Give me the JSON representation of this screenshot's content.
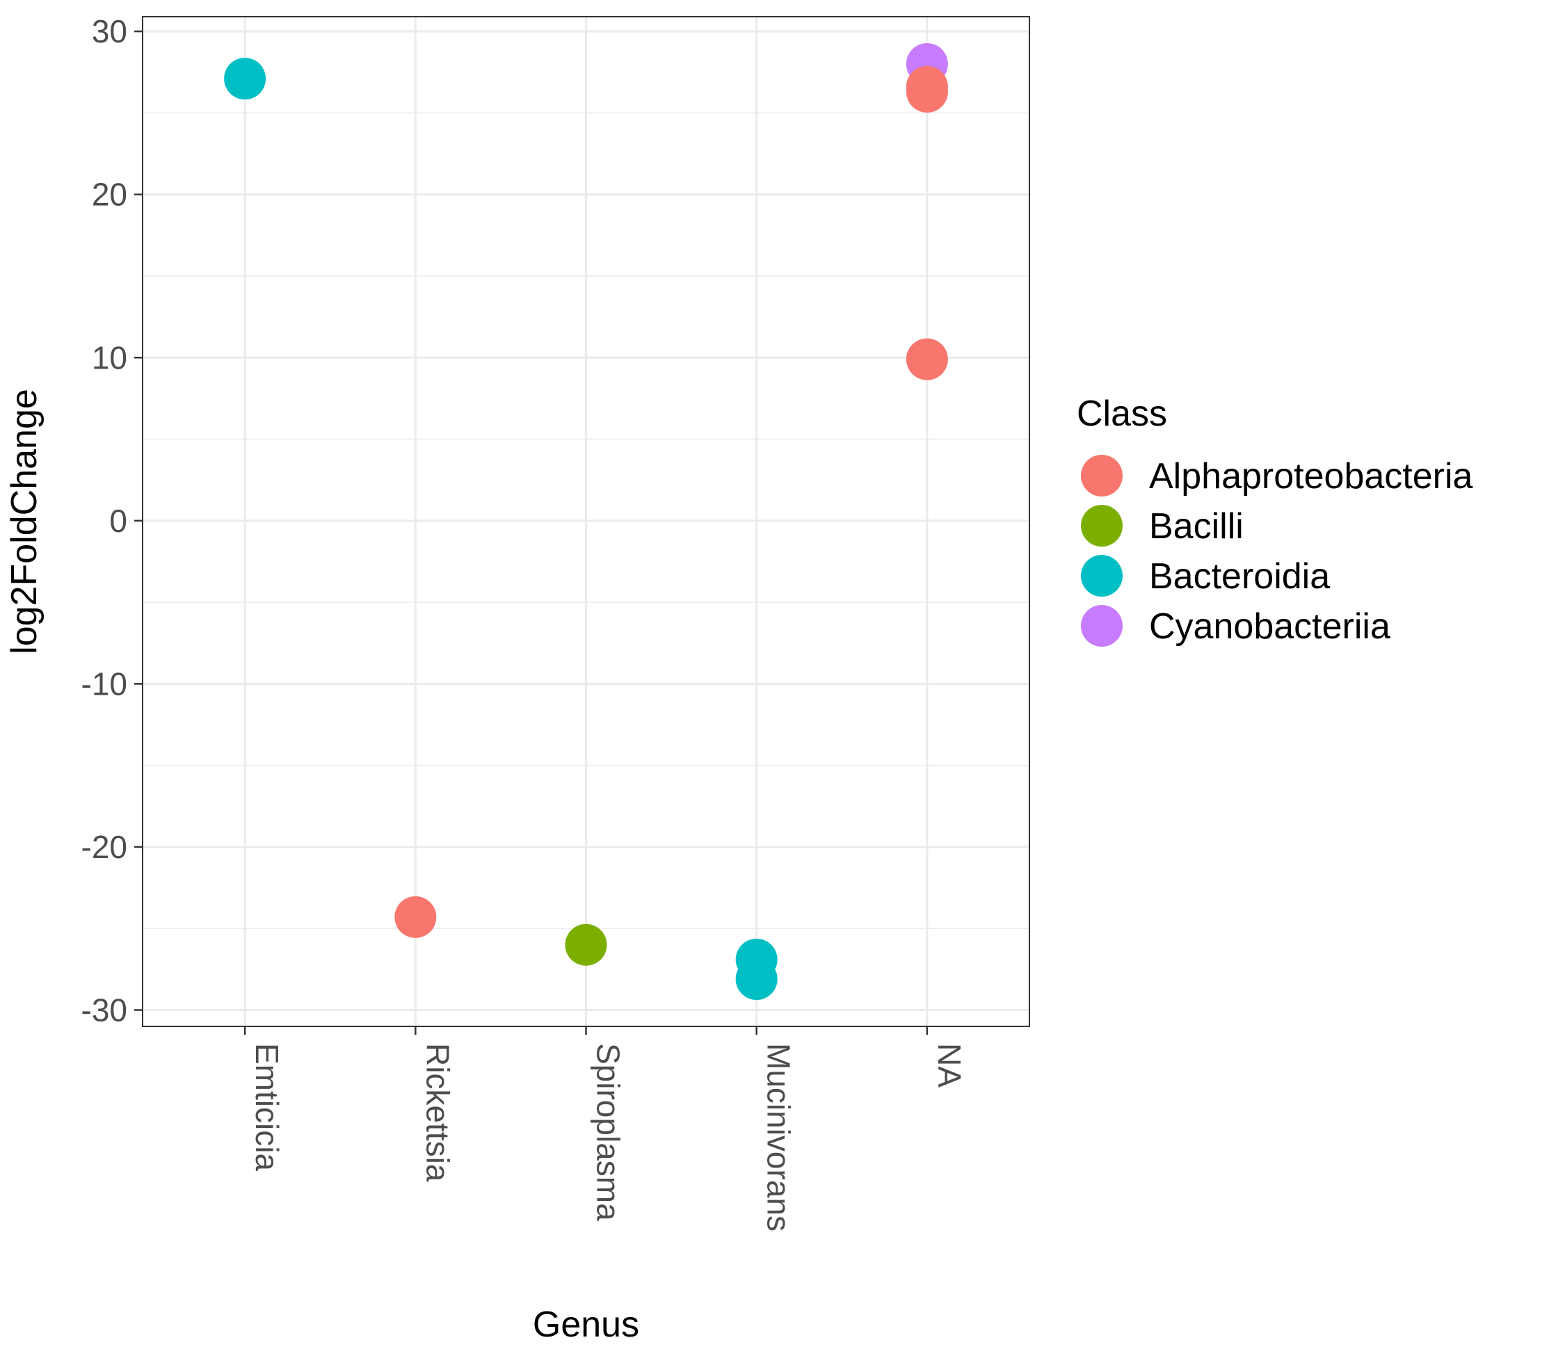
{
  "chart_data": {
    "type": "scatter",
    "title": "",
    "xlabel": "Genus",
    "ylabel": "log2FoldChange",
    "categories": [
      "Emticicia",
      "Rickettsia",
      "Spiroplasma",
      "Mucinivorans",
      "NA"
    ],
    "y_ticks": [
      "30",
      "20",
      "10",
      "0",
      "-10",
      "-20",
      "-30"
    ],
    "y_tick_values": [
      30,
      20,
      10,
      0,
      -10,
      -20,
      -30
    ],
    "ylim": [
      -31,
      30.9
    ],
    "grid": true,
    "legend": {
      "title": "Class",
      "placement": "right",
      "entries": [
        "Alphaproteobacteria",
        "Bacilli",
        "Bacteroidia",
        "Cyanobacteriia"
      ]
    },
    "colors": {
      "Alphaproteobacteria": "#F8766D",
      "Bacilli": "#7CAE00",
      "Bacteroidia": "#00BFC4",
      "Cyanobacteriia": "#C77CFF"
    },
    "points": [
      {
        "x": "Emticicia",
        "y": 27.1,
        "class": "Bacteroidia"
      },
      {
        "x": "Rickettsia",
        "y": -24.3,
        "class": "Alphaproteobacteria"
      },
      {
        "x": "Spiroplasma",
        "y": -26.0,
        "class": "Bacilli"
      },
      {
        "x": "Mucinivorans",
        "y": -26.9,
        "class": "Bacteroidia"
      },
      {
        "x": "Mucinivorans",
        "y": -28.1,
        "class": "Bacteroidia"
      },
      {
        "x": "NA",
        "y": 28.0,
        "class": "Cyanobacteriia"
      },
      {
        "x": "NA",
        "y": 26.6,
        "class": "Alphaproteobacteria"
      },
      {
        "x": "NA",
        "y": 26.3,
        "class": "Alphaproteobacteria"
      },
      {
        "x": "NA",
        "y": 9.9,
        "class": "Alphaproteobacteria"
      }
    ]
  }
}
